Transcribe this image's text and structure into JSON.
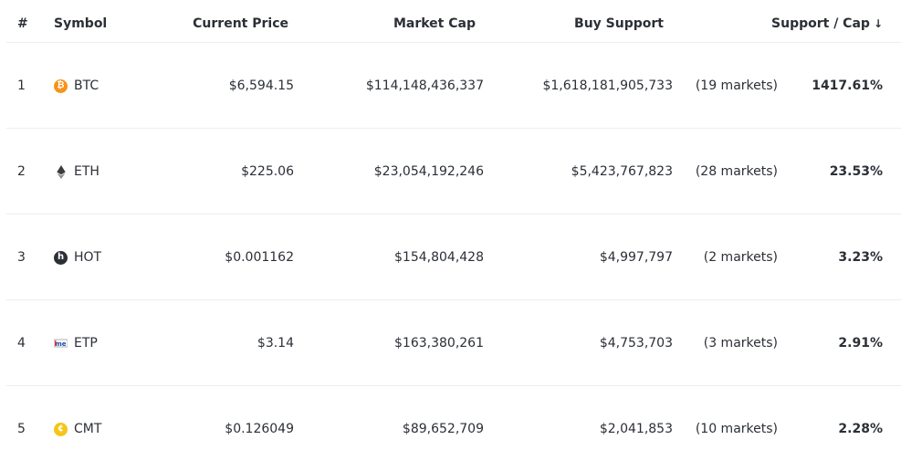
{
  "header": {
    "rank": "#",
    "symbol": "Symbol",
    "price": "Current Price",
    "market_cap": "Market Cap",
    "buy_support": "Buy Support",
    "support_cap": "Support / Cap",
    "sort_glyph": "↓"
  },
  "rows": [
    {
      "rank": "1",
      "symbol": "BTC",
      "icon": "bitcoin-icon",
      "icon_glyph": "₿",
      "price": "$6,594.15",
      "market_cap": "$114,148,436,337",
      "buy_support": "$1,618,181,905,733",
      "markets": "(19 markets)",
      "ratio": "1417.61%"
    },
    {
      "rank": "2",
      "symbol": "ETH",
      "icon": "ethereum-icon",
      "icon_glyph": "",
      "price": "$225.06",
      "market_cap": "$23,054,192,246",
      "buy_support": "$5,423,767,823",
      "markets": "(28 markets)",
      "ratio": "23.53%"
    },
    {
      "rank": "3",
      "symbol": "HOT",
      "icon": "holo-icon",
      "icon_glyph": "h",
      "price": "$0.001162",
      "market_cap": "$154,804,428",
      "buy_support": "$4,997,797",
      "markets": "(2 markets)",
      "ratio": "3.23%"
    },
    {
      "rank": "4",
      "symbol": "ETP",
      "icon": "metaverse-icon",
      "icon_glyph": "",
      "price": "$3.14",
      "market_cap": "$163,380,261",
      "buy_support": "$4,753,703",
      "markets": "(3 markets)",
      "ratio": "2.91%"
    },
    {
      "rank": "5",
      "symbol": "CMT",
      "icon": "cybermiles-icon",
      "icon_glyph": "¢",
      "price": "$0.126049",
      "market_cap": "$89,652,709",
      "buy_support": "$2,041,853",
      "markets": "(10 markets)",
      "ratio": "2.28%"
    }
  ]
}
